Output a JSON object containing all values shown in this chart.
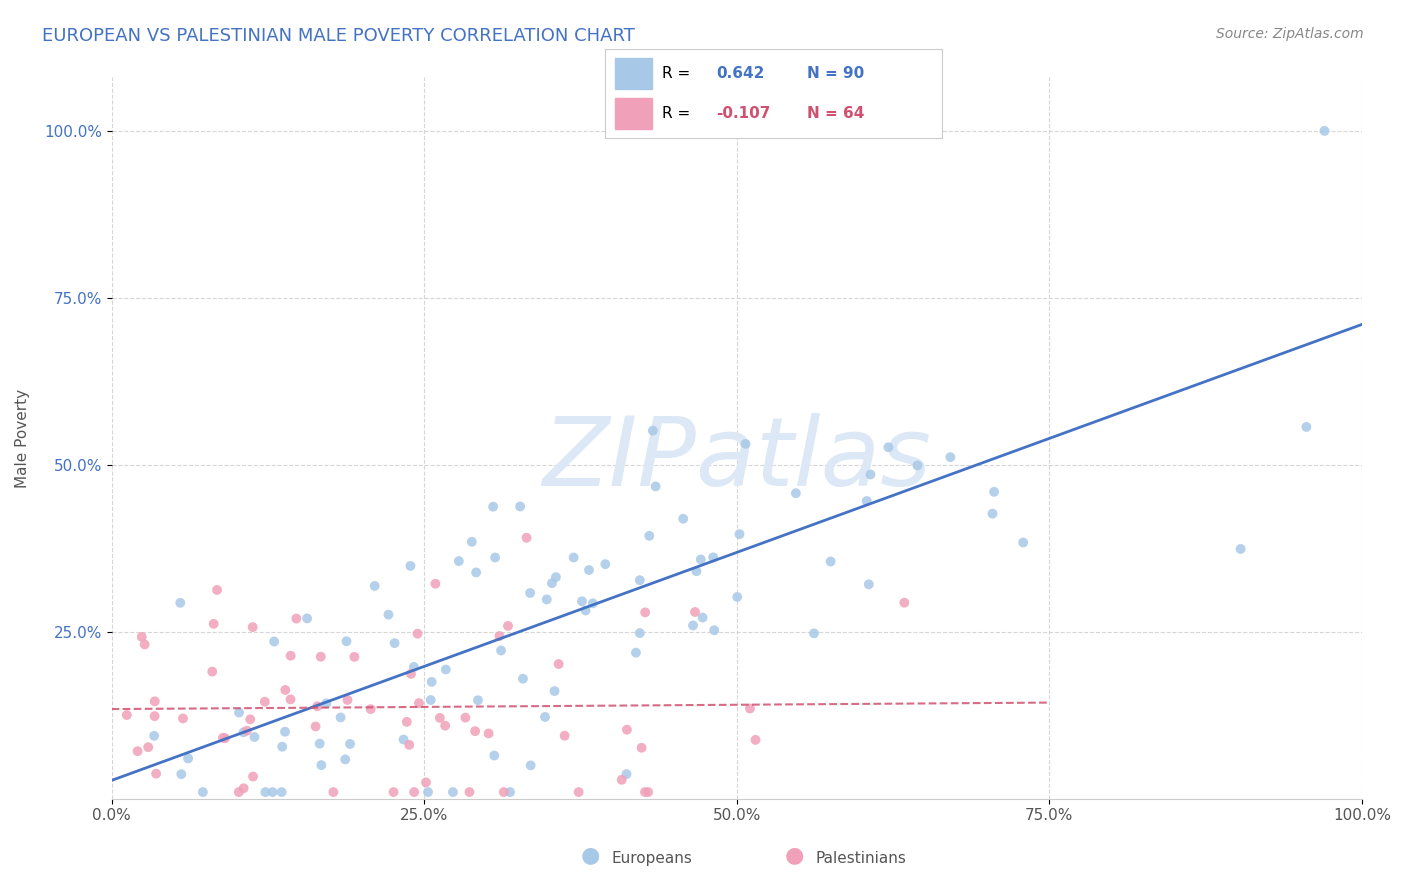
{
  "title": "EUROPEAN VS PALESTINIAN MALE POVERTY CORRELATION CHART",
  "source": "Source: ZipAtlas.com",
  "ylabel": "Male Poverty",
  "xlim": [
    0.0,
    1.0
  ],
  "ylim": [
    0.0,
    1.08
  ],
  "xtick_labels": [
    "0.0%",
    "25.0%",
    "50.0%",
    "75.0%",
    "100.0%"
  ],
  "xtick_values": [
    0.0,
    0.25,
    0.5,
    0.75,
    1.0
  ],
  "ytick_labels": [
    "25.0%",
    "50.0%",
    "75.0%",
    "100.0%"
  ],
  "ytick_values": [
    0.25,
    0.5,
    0.75,
    1.0
  ],
  "title_color": "#4472C4",
  "title_fontsize": 13,
  "background_color": "#ffffff",
  "watermark_color": "#dce8f5",
  "legend_R_european": "0.642",
  "legend_N_european": "90",
  "legend_R_palestinian": "-0.107",
  "legend_N_palestinian": "64",
  "european_color": "#a8c8e8",
  "palestinian_color": "#f0a0b8",
  "european_line_color": "#4472C4",
  "palestinian_line_color": "#d05070",
  "grid_color": "#cccccc"
}
